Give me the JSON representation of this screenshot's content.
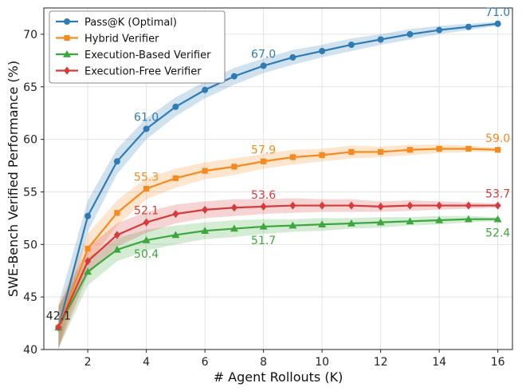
{
  "chart_data": {
    "type": "line",
    "title": "",
    "xlabel": "# Agent Rollouts (K)",
    "ylabel": "SWE-Bench Verified Performance (%)",
    "xlim": [
      0.5,
      16.5
    ],
    "ylim": [
      40,
      72.5
    ],
    "xticks": [
      2,
      4,
      6,
      8,
      10,
      12,
      14,
      16
    ],
    "yticks": [
      40,
      45,
      50,
      55,
      60,
      65,
      70
    ],
    "grid": true,
    "legend_position": "top-left",
    "x": [
      1,
      2,
      3,
      4,
      5,
      6,
      7,
      8,
      9,
      10,
      11,
      12,
      13,
      14,
      15,
      16
    ],
    "series": [
      {
        "name": "Pass@K (Optimal)",
        "color": "#2e7bb6",
        "marker": "circle",
        "values": [
          42.1,
          52.7,
          57.9,
          61.0,
          63.1,
          64.7,
          66.0,
          67.0,
          67.8,
          68.4,
          69.0,
          69.5,
          70.0,
          70.4,
          70.7,
          71.0
        ],
        "band": [
          2.2,
          1.5,
          1.2,
          1.0,
          0.9,
          0.8,
          0.8,
          0.7,
          0.7,
          0.6,
          0.6,
          0.5,
          0.5,
          0.4,
          0.3,
          0.2
        ]
      },
      {
        "name": "Hybrid Verifier",
        "color": "#f58a1f",
        "marker": "square",
        "values": [
          42.1,
          49.6,
          53.0,
          55.3,
          56.3,
          57.0,
          57.4,
          57.9,
          58.3,
          58.5,
          58.8,
          58.8,
          59.0,
          59.1,
          59.1,
          59.0
        ],
        "band": [
          2.0,
          1.4,
          1.2,
          1.0,
          0.9,
          0.8,
          0.8,
          0.7,
          0.7,
          0.6,
          0.6,
          0.5,
          0.5,
          0.4,
          0.3,
          0.2
        ]
      },
      {
        "name": "Execution-Based Verifier",
        "color": "#3da73d",
        "marker": "triangle",
        "values": [
          42.1,
          47.4,
          49.5,
          50.4,
          50.9,
          51.3,
          51.5,
          51.7,
          51.8,
          51.9,
          52.0,
          52.1,
          52.2,
          52.3,
          52.4,
          52.4
        ],
        "band": [
          2.0,
          1.3,
          1.1,
          1.0,
          0.9,
          0.8,
          0.8,
          0.7,
          0.6,
          0.6,
          0.5,
          0.5,
          0.4,
          0.4,
          0.3,
          0.2
        ]
      },
      {
        "name": "Execution-Free Verifier",
        "color": "#d63a3a",
        "marker": "diamond",
        "values": [
          42.1,
          48.4,
          50.9,
          52.1,
          52.9,
          53.3,
          53.5,
          53.6,
          53.7,
          53.7,
          53.7,
          53.6,
          53.7,
          53.7,
          53.7,
          53.7
        ],
        "band": [
          2.0,
          1.3,
          1.1,
          1.0,
          0.9,
          0.8,
          0.8,
          0.7,
          0.7,
          0.6,
          0.6,
          0.5,
          0.5,
          0.4,
          0.3,
          0.2
        ]
      }
    ],
    "annotations": [
      {
        "series": 0,
        "x": 4,
        "text": "61.0",
        "pos": "above"
      },
      {
        "series": 0,
        "x": 8,
        "text": "67.0",
        "pos": "above"
      },
      {
        "series": 0,
        "x": 16,
        "text": "71.0",
        "pos": "above"
      },
      {
        "series": 1,
        "x": 4,
        "text": "55.3",
        "pos": "above"
      },
      {
        "series": 1,
        "x": 8,
        "text": "57.9",
        "pos": "above"
      },
      {
        "series": 1,
        "x": 16,
        "text": "59.0",
        "pos": "above"
      },
      {
        "series": 3,
        "x": 4,
        "text": "52.1",
        "pos": "above"
      },
      {
        "series": 3,
        "x": 8,
        "text": "53.6",
        "pos": "above"
      },
      {
        "series": 3,
        "x": 16,
        "text": "53.7",
        "pos": "above"
      },
      {
        "series": 2,
        "x": 4,
        "text": "50.4",
        "pos": "below"
      },
      {
        "series": 2,
        "x": 8,
        "text": "51.7",
        "pos": "below"
      },
      {
        "series": 2,
        "x": 16,
        "text": "52.4",
        "pos": "below"
      },
      {
        "series": -1,
        "x": 1,
        "text": "42.1",
        "pos": "above"
      }
    ]
  }
}
